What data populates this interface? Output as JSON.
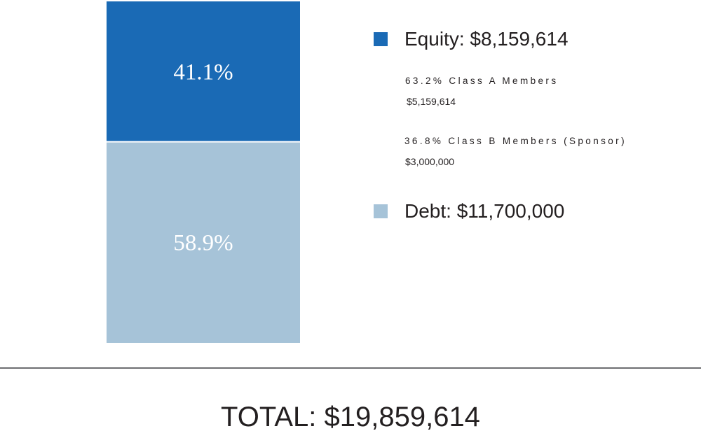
{
  "colors": {
    "equity": "#1a6ab5",
    "debt": "#a6c3d8",
    "text": "#231f20",
    "rule": "#6d6e71"
  },
  "chart_data": {
    "type": "bar",
    "stacked": true,
    "categories": [
      ""
    ],
    "series": [
      {
        "name": "Debt",
        "values": [
          58.9
        ],
        "amount": 11700000,
        "bar_label": "58.9%"
      },
      {
        "name": "Equity",
        "values": [
          41.1
        ],
        "amount": 8159614,
        "bar_label": "41.1%"
      }
    ],
    "ylim": [
      0,
      100
    ],
    "grid": false
  },
  "legend": {
    "equity": {
      "label": "Equity: $8,159,614",
      "breakdown": [
        {
          "pct": "63.2% Class A Members",
          "amount": "$5,159,614"
        },
        {
          "pct": "36.8% Class B Members (Sponsor)",
          "amount": "$3,000,000"
        }
      ]
    },
    "debt": {
      "label": "Debt: $11,700,000"
    }
  },
  "total": "TOTAL: $19,859,614"
}
